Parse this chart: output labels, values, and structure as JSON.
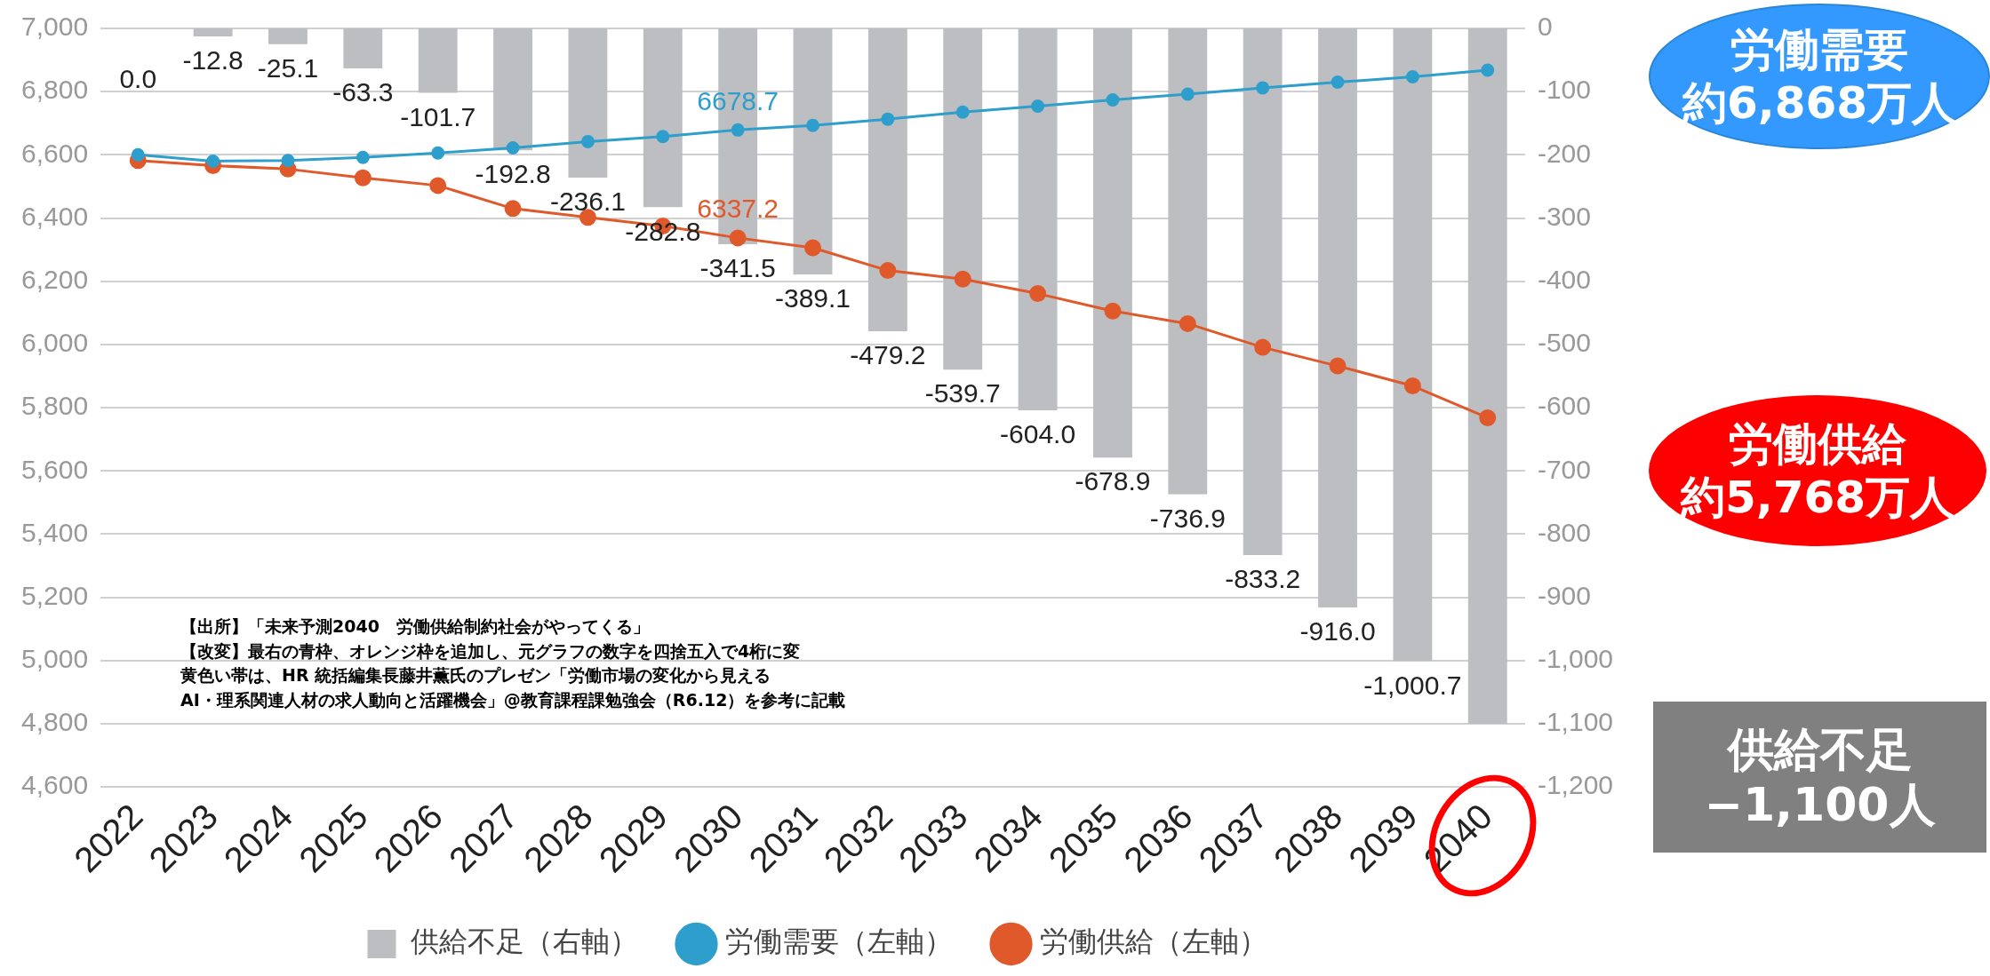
{
  "chart_data": {
    "type": "bar",
    "categories": [
      "2022",
      "2023",
      "2024",
      "2025",
      "2026",
      "2027",
      "2028",
      "2029",
      "2030",
      "2031",
      "2032",
      "2033",
      "2034",
      "2035",
      "2036",
      "2037",
      "2038",
      "2039",
      "2040"
    ],
    "series": [
      {
        "name": "供給不足（右軸）",
        "axis": "y2",
        "color": "#bdbec2",
        "values": [
          0.0,
          -12.8,
          -25.1,
          -63.3,
          -101.7,
          -192.8,
          -236.1,
          -282.8,
          -341.5,
          -389.1,
          -479.2,
          -539.7,
          -604.0,
          -678.9,
          -736.9,
          -833.2,
          -916.0,
          -1000.7,
          -1100
        ],
        "value_labels": [
          "0.0",
          "-12.8",
          "-25.1",
          "-63.3",
          "-101.7",
          "-192.8",
          "-236.1",
          "-282.8",
          "-341.5",
          "-389.1",
          "-479.2",
          "-539.7",
          "-604.0",
          "-678.9",
          "-736.9",
          "-833.2",
          "-916.0",
          "-1,000.7",
          null
        ]
      },
      {
        "name": "労働需要（左軸）",
        "type": "line",
        "axis": "y",
        "color": "#2e9fcc",
        "values": [
          6600,
          6580,
          6582,
          6592,
          6606,
          6622,
          6642,
          6658,
          6678.7,
          6693,
          6713,
          6735,
          6754,
          6774,
          6792,
          6812,
          6830,
          6847,
          6868
        ],
        "value_labels": [
          null,
          null,
          null,
          null,
          null,
          null,
          null,
          null,
          "6678.7",
          null,
          null,
          null,
          null,
          null,
          null,
          null,
          null,
          null,
          null
        ]
      },
      {
        "name": "労働供給（左軸）",
        "type": "line",
        "axis": "y",
        "color": "#e0592a",
        "values": [
          6582,
          6566,
          6555,
          6527,
          6503,
          6430,
          6402,
          6375,
          6337.2,
          6306,
          6234,
          6207,
          6161,
          6106,
          6066,
          5991,
          5932,
          5869,
          5768
        ],
        "value_labels": [
          null,
          null,
          null,
          null,
          null,
          null,
          null,
          null,
          "6337.2",
          null,
          null,
          null,
          null,
          null,
          null,
          null,
          null,
          null,
          null
        ]
      }
    ],
    "ylim": [
      4600,
      7000
    ],
    "yticks": [
      {
        "value": 4600,
        "label": "4,600"
      },
      {
        "value": 4800,
        "label": "4,800"
      },
      {
        "value": 5000,
        "label": "5,000"
      },
      {
        "value": 5200,
        "label": "5,200"
      },
      {
        "value": 5400,
        "label": "5,400"
      },
      {
        "value": 5600,
        "label": "5,600"
      },
      {
        "value": 5800,
        "label": "5,800"
      },
      {
        "value": 6000,
        "label": "6,000"
      },
      {
        "value": 6200,
        "label": "6,200"
      },
      {
        "value": 6400,
        "label": "6,400"
      },
      {
        "value": 6600,
        "label": "6,600"
      },
      {
        "value": 6800,
        "label": "6,800"
      },
      {
        "value": 7000,
        "label": "7,000"
      }
    ],
    "y2lim": [
      -1200,
      0
    ],
    "y2ticks": [
      {
        "value": -1200,
        "label": "-1,200"
      },
      {
        "value": -1100,
        "label": "-1,100"
      },
      {
        "value": -1000,
        "label": "-1,000"
      },
      -900,
      -800,
      -700,
      -600,
      -500,
      -400,
      -300,
      -200,
      -100,
      0
    ],
    "grid": "y",
    "legend": "bottom",
    "marker": "circle",
    "line_style": "solid",
    "annotations": [
      "労働需要",
      "約6,868万人",
      "労働供給",
      "約5,768万人",
      "供給不足",
      "−1,100人",
      "【出所】「未来予測2040　労働供給制約社会がやってくる」",
      "【改変】最右の青枠、オレンジ枠を追加し、元グラフの数字を四捨五入で4桁に変",
      "黄色い帯は、HR 統括編集長藤井薫氏のプレゼン「労働市場の変化から見える",
      "AI・理系関連人材の求人動向と活躍機会」@教育課程課勉強会（R6.12）を参考に記載"
    ]
  }
}
